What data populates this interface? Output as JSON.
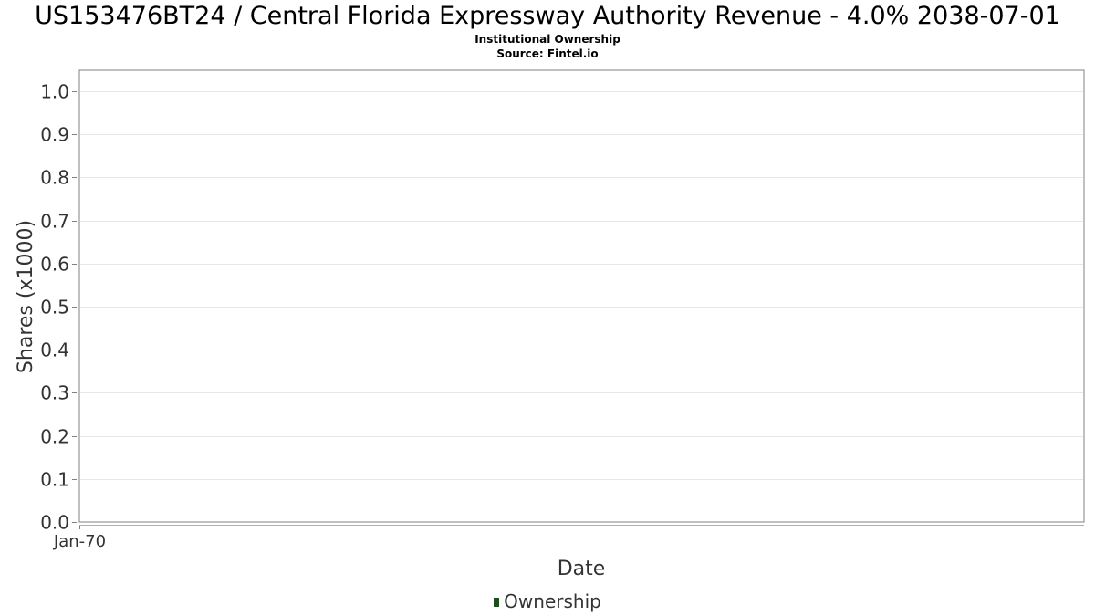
{
  "chart_data": {
    "type": "bar",
    "title": "US153476BT24 / Central Florida Expressway Authority Revenue - 4.0% 2038-07-01",
    "subtitle": [
      "Institutional Ownership",
      "Source: Fintel.io"
    ],
    "xlabel": "Date",
    "ylabel": "Shares (x1000)",
    "x_ticks": [
      "Jan-70"
    ],
    "y_ticks": [
      "0.0",
      "0.1",
      "0.2",
      "0.3",
      "0.4",
      "0.5",
      "0.6",
      "0.7",
      "0.8",
      "0.9",
      "1.0"
    ],
    "ylim": [
      0,
      1.0
    ],
    "grid": true,
    "legend": "bottom-center",
    "series": [
      {
        "name": "Ownership",
        "color": "#1e4d1e",
        "values": []
      }
    ]
  }
}
